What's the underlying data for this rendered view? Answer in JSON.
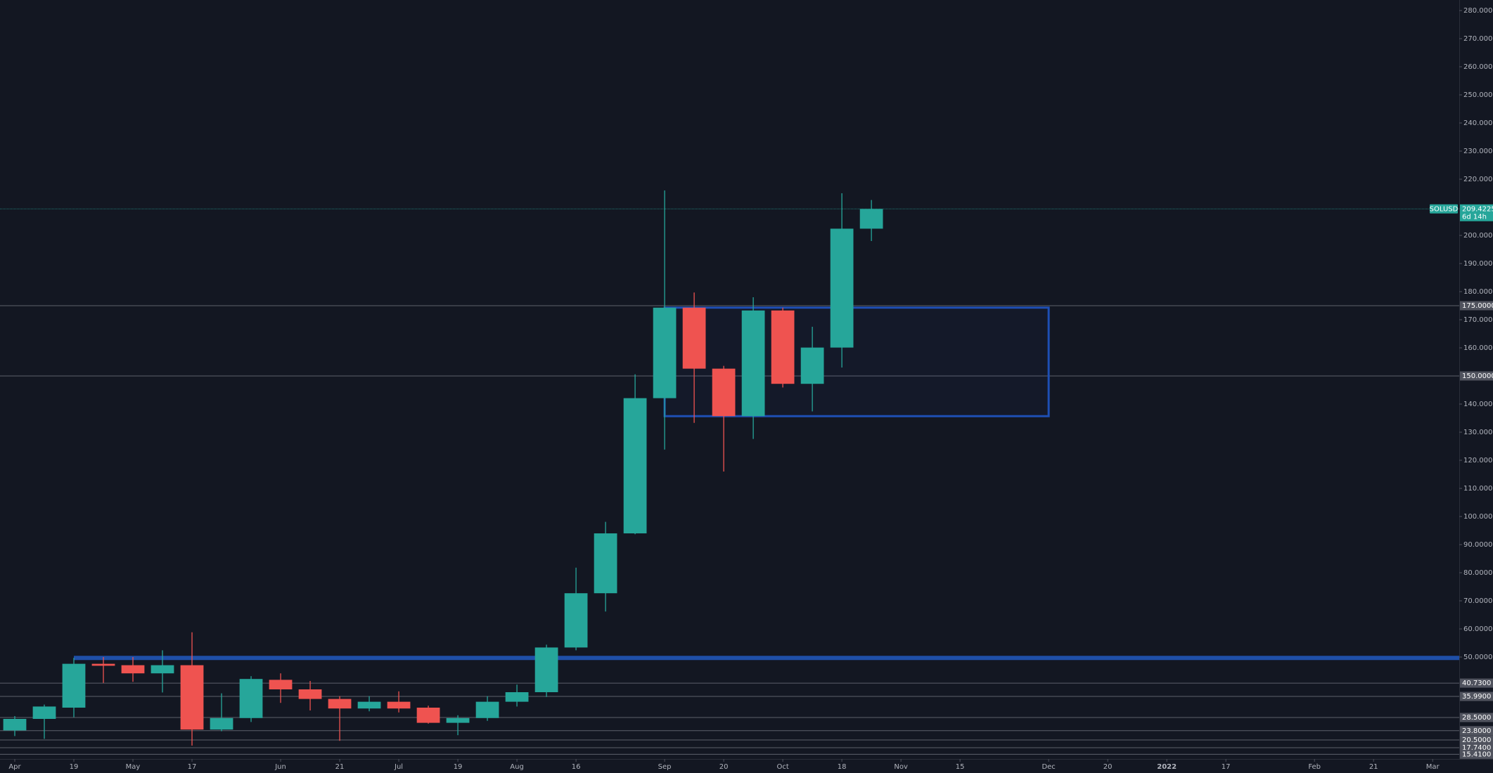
{
  "chart_data": {
    "type": "candlestick",
    "symbol": "SOLUSD",
    "countdown": "6d 14h",
    "up_color": "#26a69a",
    "down_color": "#ef5350",
    "x": [
      0,
      1,
      2,
      3,
      4,
      5,
      6,
      7,
      8,
      9,
      10,
      11,
      12,
      13,
      14,
      15,
      16,
      17,
      18,
      19,
      20,
      21,
      22,
      23,
      24,
      25,
      26,
      27,
      28,
      29
    ],
    "open": [
      23.9,
      28.0,
      32.0,
      47.6,
      47.1,
      44.2,
      47.1,
      24.2,
      28.3,
      41.9,
      38.5,
      35.1,
      31.7,
      34.1,
      32.0,
      26.6,
      28.3,
      34.1,
      37.5,
      53.4,
      72.7,
      94.0,
      142.1,
      174.3,
      152.6,
      135.7,
      173.3,
      147.2,
      160.1,
      202.4
    ],
    "high": [
      29.0,
      33.1,
      49.7,
      50.0,
      50.0,
      52.4,
      58.8,
      37.1,
      43.2,
      44.2,
      41.5,
      36.1,
      36.1,
      37.8,
      32.7,
      29.3,
      36.1,
      40.2,
      54.4,
      81.8,
      98.1,
      150.6,
      216.0,
      179.7,
      153.6,
      178.0,
      174.3,
      167.5,
      215.0,
      212.6
    ],
    "low": [
      21.9,
      20.9,
      28.6,
      40.8,
      41.2,
      37.4,
      18.5,
      23.6,
      26.9,
      33.7,
      31.0,
      20.2,
      30.7,
      30.3,
      26.3,
      22.2,
      27.3,
      32.4,
      35.8,
      52.4,
      66.2,
      93.7,
      123.8,
      133.3,
      116.0,
      127.6,
      145.9,
      137.4,
      153.0,
      198.0
    ],
    "close": [
      28.0,
      32.4,
      47.6,
      46.9,
      44.2,
      47.1,
      24.2,
      28.3,
      42.2,
      38.5,
      35.1,
      31.7,
      34.1,
      31.7,
      26.6,
      28.3,
      34.1,
      37.5,
      53.4,
      72.7,
      94.0,
      142.1,
      174.3,
      152.6,
      135.7,
      173.3,
      147.2,
      160.1,
      202.4,
      209.4225
    ],
    "xlim": [
      -0.5,
      48.9
    ],
    "ylim": [
      13.75,
      283.75
    ],
    "yticks": [
      {
        "value": 280,
        "label": "280.0000"
      },
      {
        "value": 270,
        "label": "270.0000"
      },
      {
        "value": 260,
        "label": "260.0000"
      },
      {
        "value": 250,
        "label": "250.0000"
      },
      {
        "value": 240,
        "label": "240.0000"
      },
      {
        "value": 230,
        "label": "230.0000"
      },
      {
        "value": 220,
        "label": "220.0000"
      },
      {
        "value": 200,
        "label": "200.0000"
      },
      {
        "value": 190,
        "label": "190.0000"
      },
      {
        "value": 180,
        "label": "180.0000"
      },
      {
        "value": 170,
        "label": "170.0000"
      },
      {
        "value": 160,
        "label": "160.0000"
      },
      {
        "value": 140,
        "label": "140.0000"
      },
      {
        "value": 130,
        "label": "130.0000"
      },
      {
        "value": 120,
        "label": "120.0000"
      },
      {
        "value": 110,
        "label": "110.0000"
      },
      {
        "value": 100,
        "label": "100.0000"
      },
      {
        "value": 90,
        "label": "90.0000"
      },
      {
        "value": 80,
        "label": "80.0000"
      },
      {
        "value": 70,
        "label": "70.0000"
      },
      {
        "value": 60,
        "label": "60.0000"
      },
      {
        "value": 50,
        "label": "50.0000"
      }
    ],
    "xticks": [
      {
        "value": 0,
        "label": "Apr"
      },
      {
        "value": 2,
        "label": "19"
      },
      {
        "value": 4,
        "label": "May"
      },
      {
        "value": 6,
        "label": "17"
      },
      {
        "value": 9,
        "label": "Jun"
      },
      {
        "value": 11,
        "label": "21"
      },
      {
        "value": 13,
        "label": "Jul"
      },
      {
        "value": 15,
        "label": "19"
      },
      {
        "value": 17,
        "label": "Aug"
      },
      {
        "value": 19,
        "label": "16"
      },
      {
        "value": 22,
        "label": "Sep"
      },
      {
        "value": 24,
        "label": "20"
      },
      {
        "value": 26,
        "label": "Oct"
      },
      {
        "value": 28,
        "label": "18"
      },
      {
        "value": 30,
        "label": "Nov"
      },
      {
        "value": 32,
        "label": "15"
      },
      {
        "value": 35,
        "label": "Dec"
      },
      {
        "value": 37,
        "label": "20"
      },
      {
        "value": 39,
        "label": "2022"
      },
      {
        "value": 41,
        "label": "17"
      },
      {
        "value": 44,
        "label": "Feb"
      },
      {
        "value": 46,
        "label": "21"
      },
      {
        "value": 48,
        "label": "Mar"
      }
    ],
    "levels": [
      {
        "value": 175,
        "label": "175.0000"
      },
      {
        "value": 150,
        "label": "150.0000"
      },
      {
        "value": 40.73,
        "label": "40.7300"
      },
      {
        "value": 35.99,
        "label": "35.9900"
      },
      {
        "value": 28.5,
        "label": "28.5000"
      },
      {
        "value": 23.8,
        "label": "23.8000"
      },
      {
        "value": 20.5,
        "label": "20.5000"
      },
      {
        "value": 17.74,
        "label": "17.7400"
      },
      {
        "value": 15.41,
        "label": "15.4100"
      }
    ],
    "box": {
      "x": [
        22,
        35
      ],
      "y": [
        135.7,
        174.3
      ]
    },
    "trendline": {
      "x": 2,
      "value": 49.7
    }
  }
}
